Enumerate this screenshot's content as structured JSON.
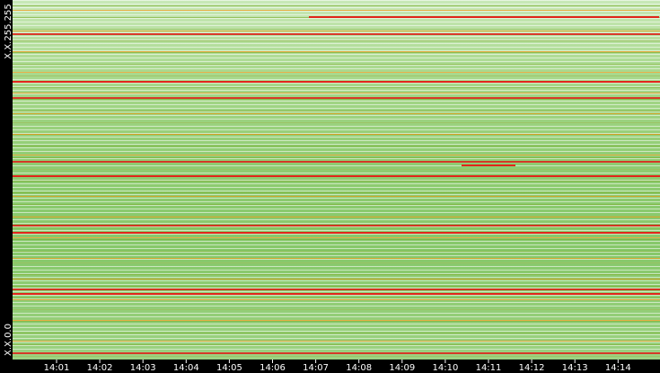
{
  "chart_data": {
    "type": "heatmap",
    "categories": [
      "14:01",
      "14:02",
      "14:03",
      "14:04",
      "14:05",
      "14:06",
      "14:07",
      "14:08",
      "14:09",
      "14:10",
      "14:11",
      "14:12",
      "14:13",
      "14:14"
    ],
    "y_top_label": "X.X.255.255",
    "y_bottom_label": "X.X.0.0"
  }
}
